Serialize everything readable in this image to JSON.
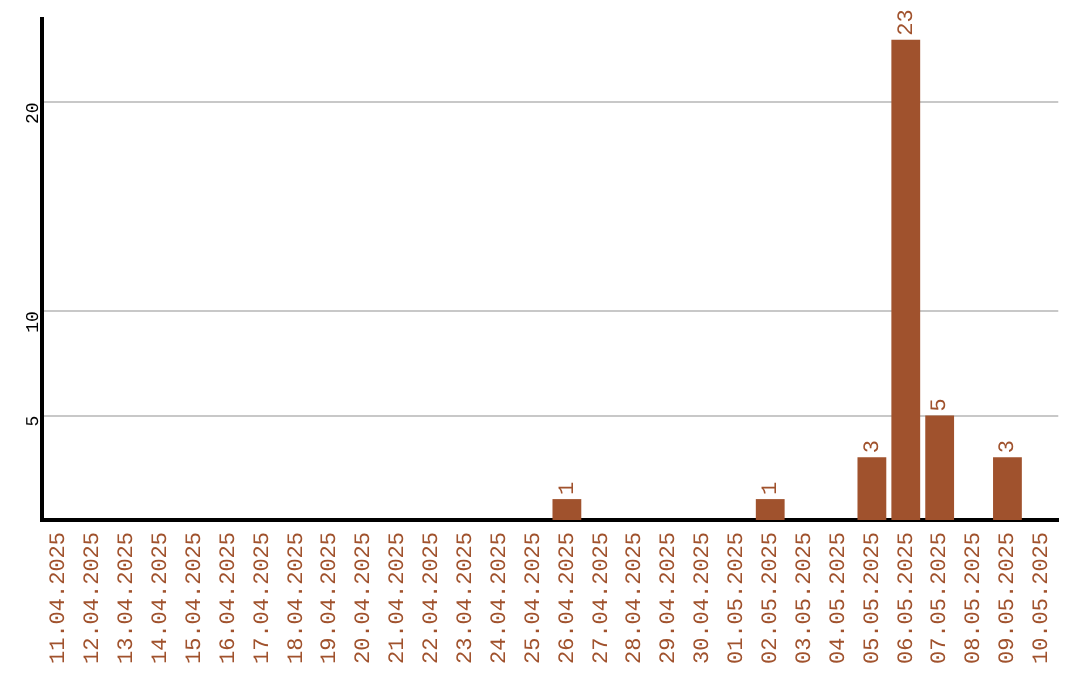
{
  "chart_data": {
    "type": "bar",
    "categories": [
      "11.04.2025",
      "12.04.2025",
      "13.04.2025",
      "14.04.2025",
      "15.04.2025",
      "16.04.2025",
      "17.04.2025",
      "18.04.2025",
      "19.04.2025",
      "20.04.2025",
      "21.04.2025",
      "22.04.2025",
      "23.04.2025",
      "24.04.2025",
      "25.04.2025",
      "26.04.2025",
      "27.04.2025",
      "28.04.2025",
      "29.04.2025",
      "30.04.2025",
      "01.05.2025",
      "02.05.2025",
      "03.05.2025",
      "04.05.2025",
      "05.05.2025",
      "06.05.2025",
      "07.05.2025",
      "08.05.2025",
      "09.05.2025",
      "10.05.2025"
    ],
    "values": [
      null,
      null,
      null,
      null,
      null,
      null,
      null,
      null,
      null,
      null,
      null,
      null,
      null,
      null,
      null,
      1,
      null,
      null,
      null,
      null,
      null,
      1,
      null,
      null,
      3,
      23,
      5,
      null,
      3,
      null
    ],
    "color": "#a0522d",
    "ylim": [
      0,
      24
    ],
    "yticks": [
      5,
      10,
      20
    ],
    "grid": "y",
    "data_labels": true,
    "legend": false
  }
}
